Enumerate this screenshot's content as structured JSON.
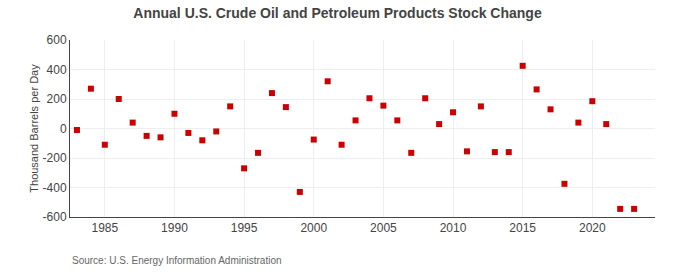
{
  "chart_data": {
    "type": "scatter",
    "title": "Annual U.S. Crude Oil and Petroleum Products Stock Change",
    "ylabel": "Thousand Barrels per Day",
    "annotations": [
      "Source: U.S. Energy Information Administration"
    ],
    "x": [
      1983,
      1984,
      1985,
      1986,
      1987,
      1988,
      1989,
      1990,
      1991,
      1992,
      1993,
      1994,
      1995,
      1996,
      1997,
      1998,
      1999,
      2000,
      2001,
      2002,
      2003,
      2004,
      2005,
      2006,
      2007,
      2008,
      2009,
      2010,
      2011,
      2012,
      2013,
      2014,
      2015,
      2016,
      2017,
      2018,
      2019,
      2020,
      2021,
      2022,
      2023
    ],
    "values": [
      -10,
      270,
      -110,
      200,
      40,
      -50,
      -60,
      100,
      -30,
      -80,
      -20,
      150,
      -270,
      -165,
      240,
      145,
      -430,
      -75,
      320,
      -110,
      55,
      205,
      155,
      55,
      -165,
      205,
      30,
      110,
      -155,
      150,
      -160,
      -160,
      425,
      265,
      130,
      -375,
      40,
      185,
      30,
      -545,
      -545
    ],
    "color": "#cc0000",
    "marker": "square",
    "xlim": [
      1982.5,
      2024.5
    ],
    "xticks": [
      1985,
      1990,
      1995,
      2000,
      2005,
      2010,
      2015,
      2020
    ],
    "ylim": [
      -600,
      600
    ],
    "yticks": [
      -600,
      -400,
      -200,
      0,
      200,
      400,
      600
    ],
    "grid": true
  }
}
